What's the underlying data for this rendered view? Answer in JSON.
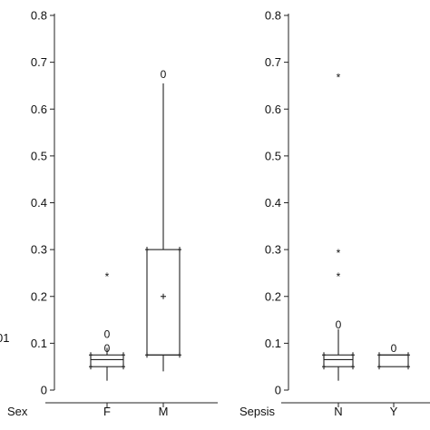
{
  "chart_data": [
    {
      "type": "box",
      "panel": "left",
      "group_label": "Sex",
      "ylim": [
        0,
        0.8
      ],
      "yticks": [
        "0",
        "0.1",
        "0.2",
        "0.3",
        "0.4",
        "0.5",
        "0.6",
        "0.7",
        "0.8"
      ],
      "categories": [
        "F",
        "M"
      ],
      "boxes": [
        {
          "category": "F",
          "whisker_low": 0.02,
          "q1": 0.05,
          "median": 0.065,
          "q3": 0.075,
          "whisker_high": 0.09,
          "mean": null,
          "outliers": [
            {
              "value": 0.12,
              "symbol": "0"
            },
            {
              "value": 0.09,
              "symbol": "0"
            },
            {
              "value": 0.25,
              "symbol": "*"
            }
          ]
        },
        {
          "category": "M",
          "whisker_low": 0.04,
          "q1": 0.075,
          "median": 0.075,
          "q3": 0.3,
          "whisker_high": 0.655,
          "mean": 0.2,
          "outliers": [
            {
              "value": 0.675,
              "symbol": "0"
            }
          ]
        }
      ],
      "edge_label_fragment": "01"
    },
    {
      "type": "box",
      "panel": "right",
      "group_label": "Sepsis",
      "ylim": [
        0,
        0.8
      ],
      "yticks": [
        "0",
        "0.1",
        "0.2",
        "0.3",
        "0.4",
        "0.5",
        "0.6",
        "0.7",
        "0.8"
      ],
      "categories": [
        "N",
        "Y"
      ],
      "boxes": [
        {
          "category": "N",
          "whisker_low": 0.02,
          "q1": 0.05,
          "median": 0.065,
          "q3": 0.075,
          "whisker_high": 0.13,
          "mean": null,
          "outliers": [
            {
              "value": 0.14,
              "symbol": "0"
            },
            {
              "value": 0.25,
              "symbol": "*"
            },
            {
              "value": 0.3,
              "symbol": "*"
            },
            {
              "value": 0.675,
              "symbol": "*"
            }
          ]
        },
        {
          "category": "Y",
          "whisker_low": 0.05,
          "q1": 0.05,
          "median": 0.075,
          "q3": 0.075,
          "whisker_high": 0.075,
          "mean": null,
          "outliers": [
            {
              "value": 0.09,
              "symbol": "0"
            }
          ]
        }
      ]
    }
  ]
}
